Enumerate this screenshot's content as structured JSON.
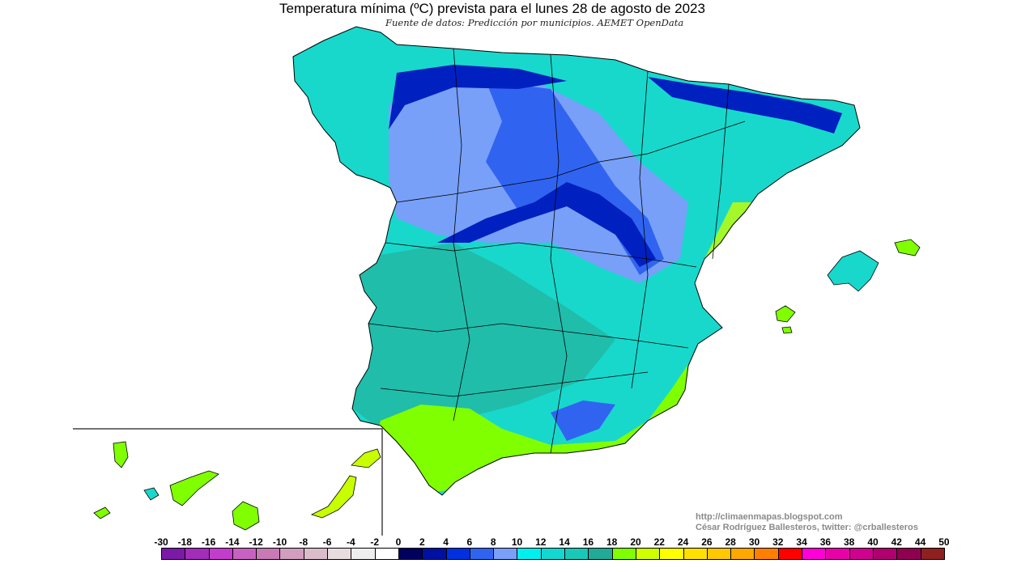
{
  "title": "Temperatura mínima (ºC) prevista para el lunes 28 de agosto de 2023",
  "subtitle": "Fuente de datos: Predicción por municipios. AEMET OpenData",
  "credits": {
    "url": "http://climaenmapas.blogspot.com",
    "author": "César Rodríguez Ballesteros, twitter: @crballesteros"
  },
  "legend": {
    "unit": "ºC",
    "labels": [
      "-30",
      "-18",
      "-16",
      "-14",
      "-12",
      "-10",
      "-8",
      "-6",
      "-4",
      "-2",
      "0",
      "2",
      "4",
      "6",
      "8",
      "10",
      "12",
      "14",
      "16",
      "18",
      "20",
      "22",
      "24",
      "26",
      "28",
      "30",
      "32",
      "34",
      "36",
      "38",
      "40",
      "42",
      "44",
      "50"
    ],
    "colors": [
      "#7b1aa6",
      "#a12db8",
      "#c43ccc",
      "#c862c0",
      "#c87ab4",
      "#d29ebe",
      "#dcbccb",
      "#e8dcdf",
      "#eeeeee",
      "#ffffff",
      "#00005e",
      "#0010a0",
      "#0030e0",
      "#3064f0",
      "#78a0f8",
      "#00f0f0",
      "#12d8d0",
      "#1ac8b8",
      "#22aa98",
      "#80ff00",
      "#d0ff00",
      "#ffff00",
      "#ffe000",
      "#ffc800",
      "#ffa800",
      "#ff8000",
      "#ff0000",
      "#ff00d8",
      "#e800a8",
      "#d00090",
      "#b00070",
      "#900050",
      "#8e2020"
    ]
  },
  "map_colors": {
    "base": "#18d8cc",
    "teal": "#22b8a4",
    "light_blue": "#78a0f8",
    "blue": "#3064f0",
    "dark_blue": "#0020c0",
    "green": "#80ff00",
    "yellow_green": "#c8ff00",
    "border": "#000000"
  }
}
